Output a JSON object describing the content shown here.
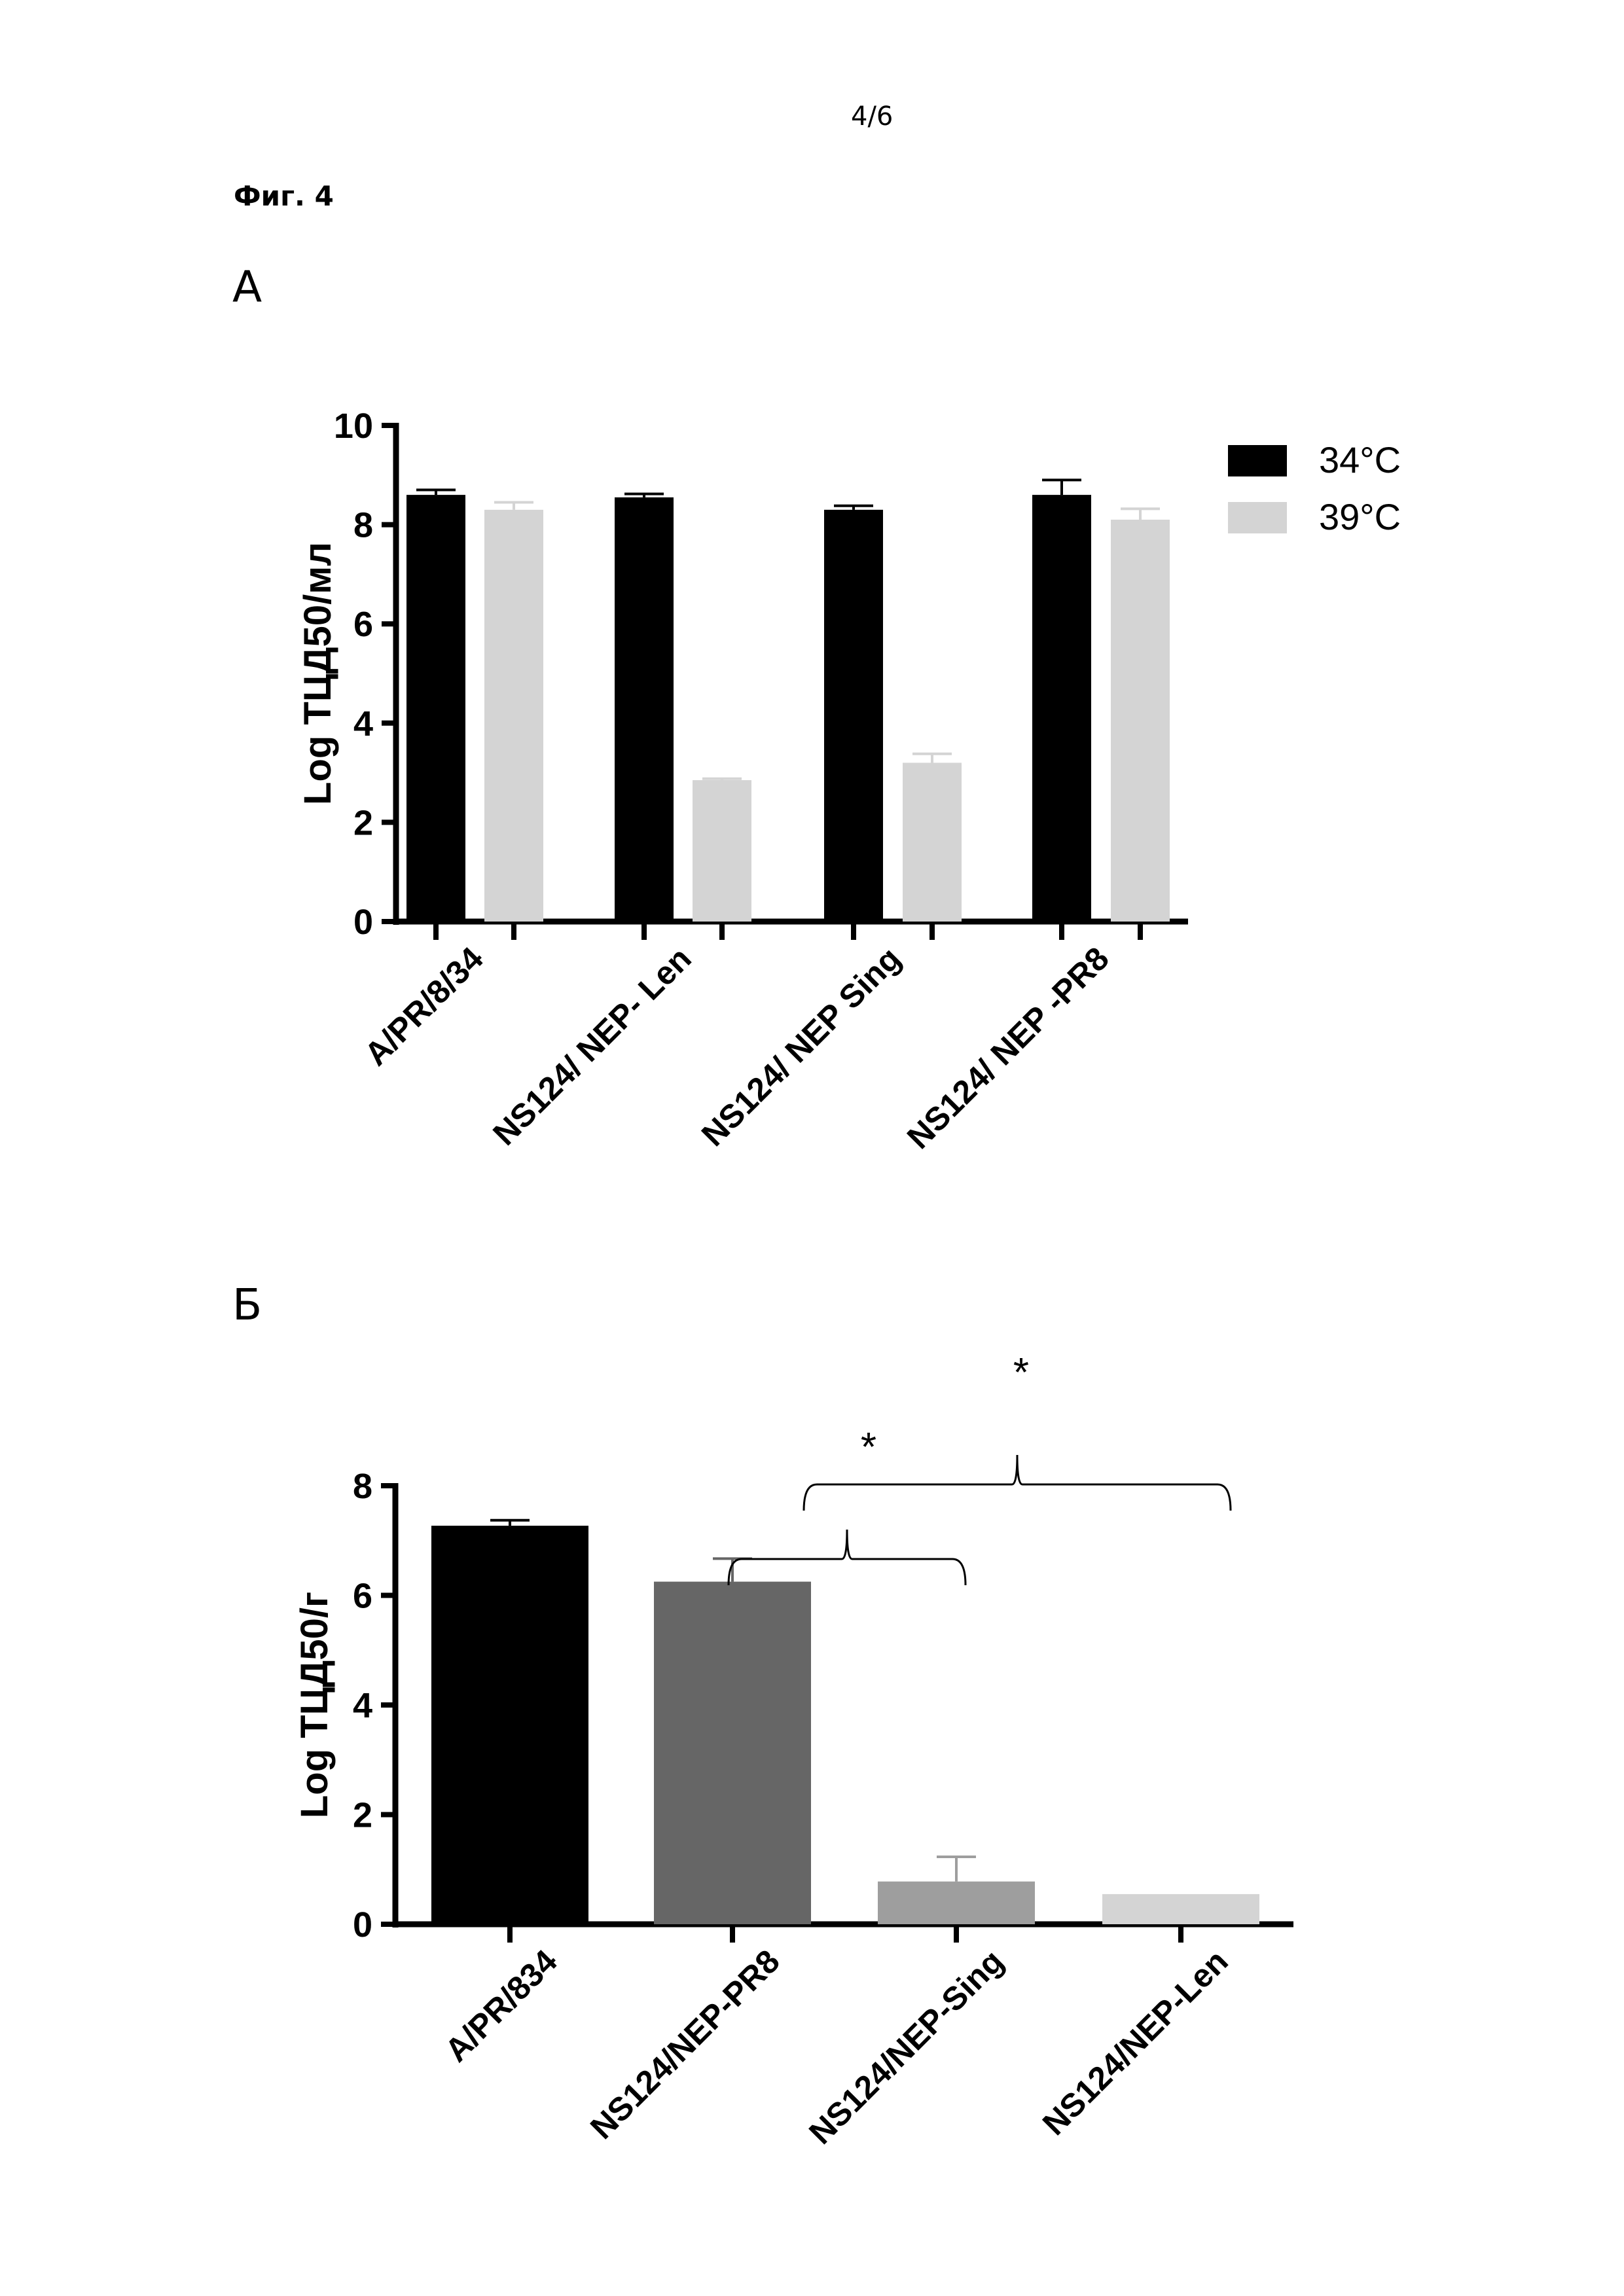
{
  "page_number": "4/6",
  "figure_label": "Фиг. 4",
  "panel_a_label": "А",
  "panel_b_label": "Б",
  "chart_data": [
    {
      "type": "bar",
      "panel": "А",
      "ylabel": "Log ТЦД50/мл",
      "ylim": [
        0,
        10
      ],
      "yticks": [
        "0",
        "2",
        "4",
        "6",
        "8",
        "10"
      ],
      "categories": [
        "A/PR/8/34",
        "NS124/ NEP- Len",
        "NS124/ NEP Sing",
        "NS124/ NEP -PR8"
      ],
      "legend_position": "top-right",
      "series": [
        {
          "name": "34°C",
          "color": "#000000",
          "values": [
            8.6,
            8.55,
            8.3,
            8.6
          ],
          "errors": [
            0.1,
            0.07,
            0.08,
            0.3
          ]
        },
        {
          "name": "39°C",
          "color": "#d4d4d4",
          "values": [
            8.3,
            2.85,
            3.2,
            8.1
          ],
          "errors": [
            0.15,
            0.03,
            0.18,
            0.22
          ]
        }
      ]
    },
    {
      "type": "bar",
      "panel": "Б",
      "ylabel": "Log ТЦД50/г",
      "ylim": [
        0,
        8
      ],
      "yticks": [
        "0",
        "2",
        "4",
        "6",
        "8"
      ],
      "categories": [
        "A/PR/834",
        "NS124/NEP-PR8",
        "NS124/NEP-Sing",
        "NS124/NEP-Len"
      ],
      "values": [
        7.27,
        6.25,
        0.78,
        0.55
      ],
      "errors": [
        0.1,
        0.42,
        0.45,
        0
      ],
      "colors": [
        "#000000",
        "#666666",
        "#9e9e9e",
        "#d4d4d4"
      ],
      "annotations": [
        {
          "text": "*",
          "from": "NS124/NEP-PR8",
          "to": "NS124/NEP-Sing"
        },
        {
          "text": "*",
          "from": "NS124/NEP-PR8",
          "to": "NS124/NEP-Len"
        }
      ]
    }
  ]
}
